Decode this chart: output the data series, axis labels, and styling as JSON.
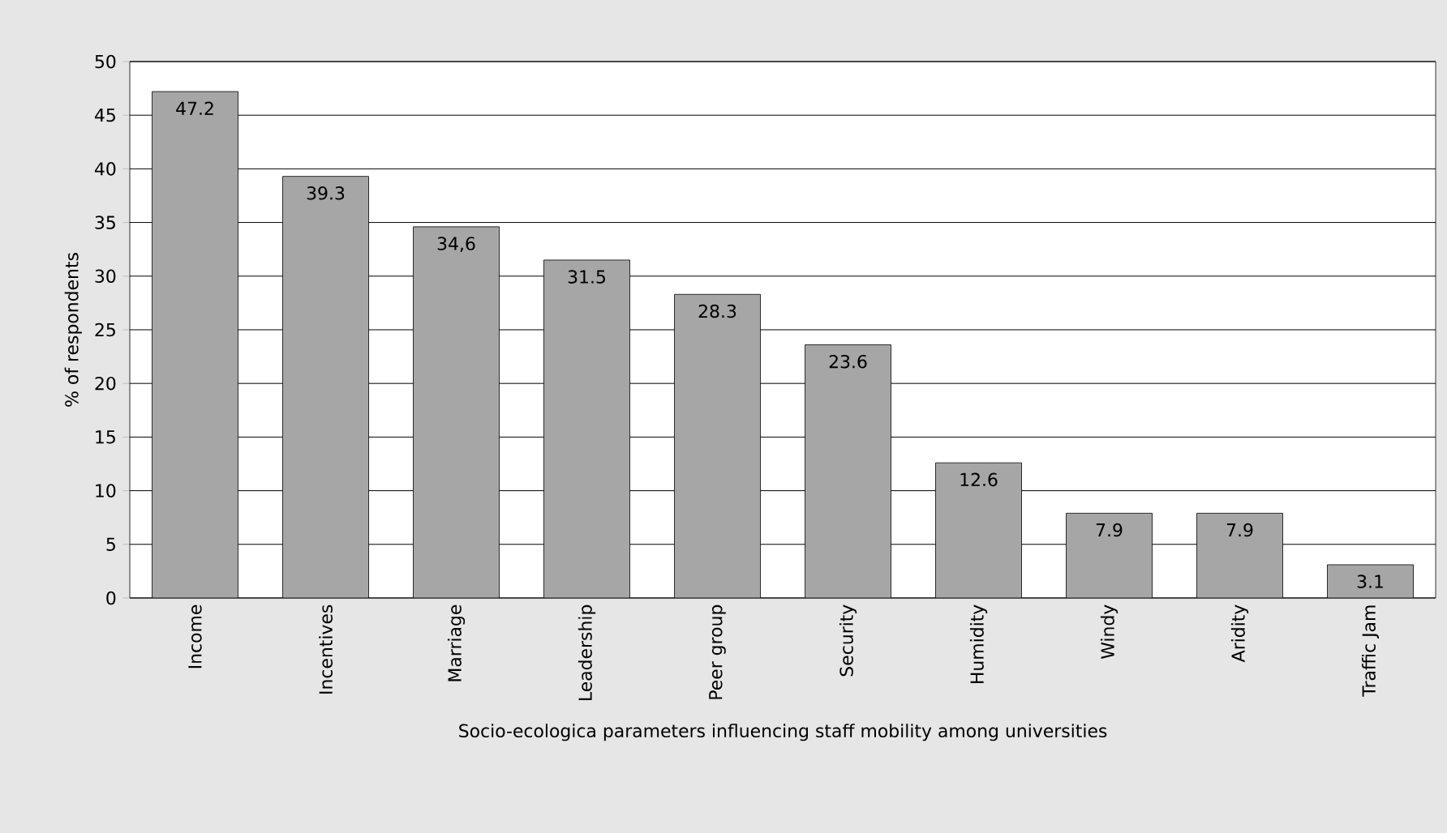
{
  "chart_data": {
    "type": "bar",
    "xlabel": "Socio-ecologica parameters influencing staff mobility among universities",
    "ylabel": "% of respondents",
    "categories": [
      "Income",
      "Incentives",
      "Marriage",
      "Leadership",
      "Peer group",
      "Security",
      "Humidity",
      "Windy",
      "Aridity",
      "Traffic Jam"
    ],
    "values": [
      47.2,
      39.3,
      34.6,
      31.5,
      28.3,
      23.6,
      12.6,
      7.9,
      7.9,
      3.1
    ],
    "value_labels": [
      "47.2",
      "39.3",
      "34,6",
      "31.5",
      "28.3",
      "23.6",
      "12.6",
      "7.9",
      "7.9",
      "3.1"
    ],
    "color": "#a6a6a6",
    "ylim": [
      0,
      50
    ],
    "yticks": [
      0,
      5,
      10,
      15,
      20,
      25,
      30,
      35,
      40,
      45,
      50
    ],
    "grid": "y"
  }
}
